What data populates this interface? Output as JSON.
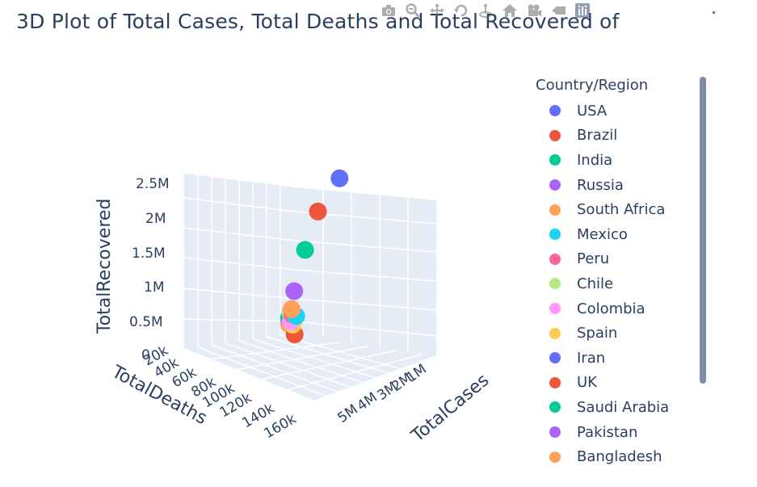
{
  "title": "3D Plot of Total Cases, Total Deaths and Total Recovered of",
  "modebar": [
    "camera-icon",
    "zoom-icon",
    "pan-icon",
    "orbit-icon",
    "turntable-icon",
    "home-icon",
    "camera-view-icon",
    "hover-icon",
    "plotly-logo-icon"
  ],
  "legend": {
    "title": "Country/Region",
    "items": [
      {
        "label": "USA",
        "color": "#636efa"
      },
      {
        "label": "Brazil",
        "color": "#EF553B"
      },
      {
        "label": "India",
        "color": "#00cc96"
      },
      {
        "label": "Russia",
        "color": "#ab63fa"
      },
      {
        "label": "South Africa",
        "color": "#FFA15A"
      },
      {
        "label": "Mexico",
        "color": "#19d3f3"
      },
      {
        "label": "Peru",
        "color": "#FF6692"
      },
      {
        "label": "Chile",
        "color": "#B6E880"
      },
      {
        "label": "Colombia",
        "color": "#FF97FF"
      },
      {
        "label": "Spain",
        "color": "#FECB52"
      },
      {
        "label": "Iran",
        "color": "#636efa"
      },
      {
        "label": "UK",
        "color": "#EF553B"
      },
      {
        "label": "Saudi Arabia",
        "color": "#00cc96"
      },
      {
        "label": "Pakistan",
        "color": "#ab63fa"
      },
      {
        "label": "Bangladesh",
        "color": "#FFA15A"
      }
    ]
  },
  "chart_data": {
    "type": "scatter3d",
    "xlabel": "TotalDeaths",
    "ylabel": "TotalCases",
    "zlabel": "TotalRecovered",
    "x_ticks": [
      "0",
      "20k",
      "40k",
      "60k",
      "80k",
      "100k",
      "120k",
      "140k",
      "160k"
    ],
    "y_ticks": [
      "1M",
      "2M",
      "3M",
      "4M",
      "5M"
    ],
    "z_ticks": [
      "0",
      "0.5M",
      "1M",
      "1.5M",
      "2M",
      "2.5M"
    ],
    "series": [
      {
        "name": "USA",
        "deaths": 162000,
        "cases": 5000000,
        "recovered": 2600000
      },
      {
        "name": "Brazil",
        "deaths": 98000,
        "cases": 2900000,
        "recovered": 2050000
      },
      {
        "name": "India",
        "deaths": 42000,
        "cases": 2000000,
        "recovered": 1380000
      },
      {
        "name": "Russia",
        "deaths": 14000,
        "cases": 880000,
        "recovered": 690000
      },
      {
        "name": "South Africa",
        "deaths": 10000,
        "cases": 540000,
        "recovered": 390000
      },
      {
        "name": "Mexico",
        "deaths": 51000,
        "cases": 460000,
        "recovered": 310000
      },
      {
        "name": "Peru",
        "deaths": 20000,
        "cases": 460000,
        "recovered": 310000
      },
      {
        "name": "Chile",
        "deaths": 10000,
        "cases": 370000,
        "recovered": 340000
      },
      {
        "name": "Colombia",
        "deaths": 12000,
        "cases": 360000,
        "recovered": 190000
      },
      {
        "name": "Spain",
        "deaths": 28000,
        "cases": 350000,
        "recovered": 150000
      },
      {
        "name": "Iran",
        "deaths": 18000,
        "cases": 320000,
        "recovered": 280000
      },
      {
        "name": "UK",
        "deaths": 46000,
        "cases": 310000,
        "recovered": 0
      },
      {
        "name": "Saudi Arabia",
        "deaths": 3000,
        "cases": 280000,
        "recovered": 240000
      },
      {
        "name": "Pakistan",
        "deaths": 6000,
        "cases": 280000,
        "recovered": 250000
      },
      {
        "name": "Bangladesh",
        "deaths": 3000,
        "cases": 250000,
        "recovered": 145000
      }
    ]
  }
}
